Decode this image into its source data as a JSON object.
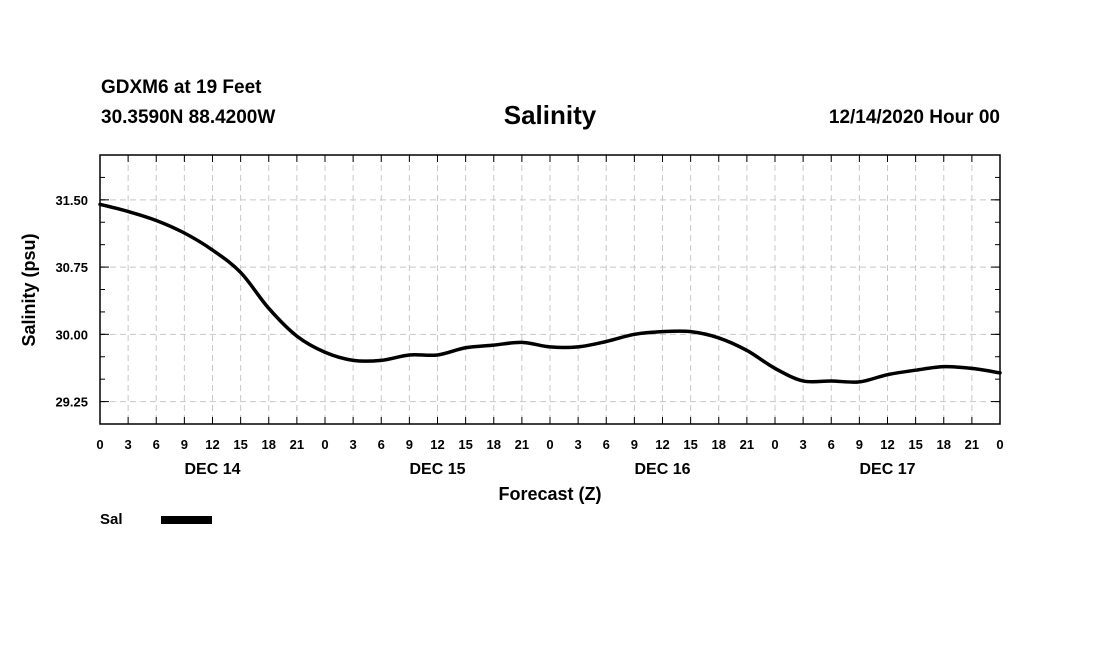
{
  "header": {
    "station": "GDXM6 at 19 Feet",
    "coords": "30.3590N 88.4200W",
    "forecast_time": "12/14/2020 Hour 00"
  },
  "chart_data": {
    "type": "line",
    "title": "Salinity",
    "xlabel": "Forecast (Z)",
    "ylabel": "Salinity (psu)",
    "x_hours": [
      0,
      3,
      6,
      9,
      12,
      15,
      18,
      21,
      24,
      27,
      30,
      33,
      36,
      39,
      42,
      45,
      48,
      51,
      54,
      57,
      60,
      63,
      66,
      69,
      72,
      75,
      78,
      81,
      84,
      87,
      90,
      93,
      96
    ],
    "series": [
      {
        "name": "Sal",
        "values": [
          31.45,
          31.37,
          31.27,
          31.13,
          30.94,
          30.69,
          30.29,
          29.98,
          29.8,
          29.71,
          29.71,
          29.77,
          29.77,
          29.85,
          29.88,
          29.91,
          29.86,
          29.86,
          29.92,
          30.0,
          30.03,
          30.03,
          29.96,
          29.82,
          29.62,
          29.48,
          29.48,
          29.47,
          29.55,
          29.6,
          29.64,
          29.62,
          29.57
        ]
      }
    ],
    "xlim": [
      0,
      96
    ],
    "ylim": [
      29.0,
      32.0
    ],
    "x_ticks": [
      0,
      3,
      6,
      9,
      12,
      15,
      18,
      21,
      24,
      27,
      30,
      33,
      36,
      39,
      42,
      45,
      48,
      51,
      54,
      57,
      60,
      63,
      66,
      69,
      72,
      75,
      78,
      81,
      84,
      87,
      90,
      93,
      96
    ],
    "x_tick_labels": [
      "0",
      "3",
      "6",
      "9",
      "12",
      "15",
      "18",
      "21",
      "0",
      "3",
      "6",
      "9",
      "12",
      "15",
      "18",
      "21",
      "0",
      "3",
      "6",
      "9",
      "12",
      "15",
      "18",
      "21",
      "0",
      "3",
      "6",
      "9",
      "12",
      "15",
      "18",
      "21",
      "0"
    ],
    "y_ticks": [
      29.25,
      30.0,
      30.75,
      31.5
    ],
    "y_tick_labels": [
      "29.25",
      "30.00",
      "30.75",
      "31.50"
    ],
    "y_minor_step": 0.25,
    "day_labels": [
      {
        "hour": 12,
        "label": "DEC 14"
      },
      {
        "hour": 36,
        "label": "DEC 15"
      },
      {
        "hour": 60,
        "label": "DEC 16"
      },
      {
        "hour": 84,
        "label": "DEC 17"
      }
    ],
    "grid": true,
    "legend": {
      "label": "Sal",
      "placement": "bottom-left"
    },
    "line_color": "#000000",
    "grid_color": "#c8c8c8"
  }
}
